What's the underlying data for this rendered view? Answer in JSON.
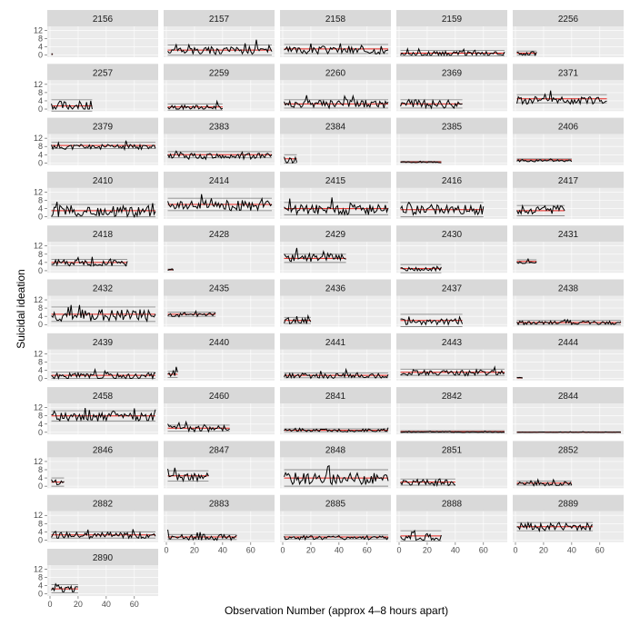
{
  "chart_data": {
    "type": "line",
    "facet": "small-multiples",
    "xlabel": "Observation Number (approx 4–8 hours apart)",
    "ylabel": "Suicidal ideation",
    "xlim": [
      0,
      75
    ],
    "ylim": [
      -1,
      14
    ],
    "x_ticks": [
      0,
      20,
      40,
      60
    ],
    "y_ticks": [
      0,
      4,
      8,
      12
    ],
    "grid": true,
    "colors": {
      "panel_bg": "#ebebeb",
      "strip_bg": "#d9d9d9",
      "grid": "#ffffff",
      "series": "#000000",
      "mean_line": "#e8251f",
      "band_line": "#8c8c8c"
    },
    "panels": [
      {
        "id": "2156",
        "n": 2,
        "mean": 0.5,
        "sd": 0.3,
        "base": 0.3,
        "amp": 0.4,
        "seed": 1
      },
      {
        "id": "2157",
        "n": 75,
        "mean": 2.5,
        "sd": 2.5,
        "base": 2,
        "amp": 4,
        "seed": 2
      },
      {
        "id": "2158",
        "n": 75,
        "mean": 3,
        "sd": 2.2,
        "base": 2,
        "amp": 3.5,
        "seed": 3
      },
      {
        "id": "2159",
        "n": 75,
        "mean": 1,
        "sd": 1.3,
        "base": 0.5,
        "amp": 2.5,
        "seed": 4
      },
      {
        "id": "2256",
        "n": 15,
        "mean": 1,
        "sd": 1,
        "base": 0.5,
        "amp": 2,
        "seed": 5
      },
      {
        "id": "2257",
        "n": 30,
        "mean": 1.5,
        "sd": 3,
        "base": 1,
        "amp": 5,
        "seed": 6
      },
      {
        "id": "2259",
        "n": 40,
        "mean": 1,
        "sd": 1.5,
        "base": 0.5,
        "amp": 2.5,
        "seed": 7
      },
      {
        "id": "2260",
        "n": 75,
        "mean": 2.5,
        "sd": 2,
        "base": 2,
        "amp": 4,
        "seed": 8
      },
      {
        "id": "2369",
        "n": 45,
        "mean": 2.5,
        "sd": 2,
        "base": 2,
        "amp": 4,
        "seed": 9
      },
      {
        "id": "2371",
        "n": 65,
        "mean": 5,
        "sd": 2,
        "base": 4,
        "amp": 4,
        "seed": 10
      },
      {
        "id": "2379",
        "n": 75,
        "mean": 8.5,
        "sd": 1.5,
        "base": 7.5,
        "amp": 2.5,
        "seed": 11
      },
      {
        "id": "2383",
        "n": 75,
        "mean": 4,
        "sd": 1.5,
        "base": 3,
        "amp": 3,
        "seed": 12
      },
      {
        "id": "2384",
        "n": 10,
        "mean": 2,
        "sd": 2,
        "base": 1,
        "amp": 3,
        "seed": 13
      },
      {
        "id": "2385",
        "n": 30,
        "mean": 0.5,
        "sd": 0.3,
        "base": 0.3,
        "amp": 0.5,
        "seed": 14
      },
      {
        "id": "2406",
        "n": 40,
        "mean": 1.5,
        "sd": 0.5,
        "base": 1,
        "amp": 1,
        "seed": 15
      },
      {
        "id": "2410",
        "n": 75,
        "mean": 3,
        "sd": 3,
        "base": 2,
        "amp": 6,
        "seed": 16
      },
      {
        "id": "2414",
        "n": 75,
        "mean": 6,
        "sd": 3,
        "base": 5,
        "amp": 5,
        "seed": 17
      },
      {
        "id": "2415",
        "n": 75,
        "mean": 4,
        "sd": 3,
        "base": 3,
        "amp": 5,
        "seed": 18
      },
      {
        "id": "2416",
        "n": 60,
        "mean": 3.5,
        "sd": 3.5,
        "base": 3,
        "amp": 5,
        "seed": 19
      },
      {
        "id": "2417",
        "n": 35,
        "mean": 3,
        "sd": 2.5,
        "base": 3,
        "amp": 4,
        "seed": 20
      },
      {
        "id": "2418",
        "n": 55,
        "mean": 4,
        "sd": 1.5,
        "base": 3.5,
        "amp": 3,
        "seed": 21
      },
      {
        "id": "2428",
        "n": 5,
        "mean": 0.5,
        "sd": 0.3,
        "base": 0.5,
        "amp": 1,
        "seed": 22
      },
      {
        "id": "2429",
        "n": 45,
        "mean": 6,
        "sd": 2,
        "base": 6,
        "amp": 4,
        "seed": 23
      },
      {
        "id": "2430",
        "n": 30,
        "mean": 1,
        "sd": 2,
        "base": 0.5,
        "amp": 2,
        "seed": 24
      },
      {
        "id": "2431",
        "n": 15,
        "mean": 4.5,
        "sd": 0.8,
        "base": 4,
        "amp": 1.5,
        "seed": 25
      },
      {
        "id": "2432",
        "n": 75,
        "mean": 5,
        "sd": 3.5,
        "base": 4,
        "amp": 6,
        "seed": 26
      },
      {
        "id": "2435",
        "n": 35,
        "mean": 5,
        "sd": 1,
        "base": 4.5,
        "amp": 2,
        "seed": 27
      },
      {
        "id": "2436",
        "n": 20,
        "mean": 2,
        "sd": 1.5,
        "base": 1.5,
        "amp": 3,
        "seed": 28
      },
      {
        "id": "2437",
        "n": 45,
        "mean": 2,
        "sd": 3,
        "base": 1,
        "amp": 3,
        "seed": 29
      },
      {
        "id": "2438",
        "n": 75,
        "mean": 1,
        "sd": 1,
        "base": 0.5,
        "amp": 2,
        "seed": 30
      },
      {
        "id": "2439",
        "n": 75,
        "mean": 1.5,
        "sd": 1.5,
        "base": 0.8,
        "amp": 3,
        "seed": 31
      },
      {
        "id": "2440",
        "n": 8,
        "mean": 2,
        "sd": 1.5,
        "base": 2,
        "amp": 3,
        "seed": 32
      },
      {
        "id": "2441",
        "n": 75,
        "mean": 1.5,
        "sd": 1.2,
        "base": 1,
        "amp": 2.5,
        "seed": 33
      },
      {
        "id": "2443",
        "n": 75,
        "mean": 3,
        "sd": 1.5,
        "base": 2.5,
        "amp": 3,
        "seed": 34
      },
      {
        "id": "2444",
        "n": 5,
        "mean": 0.3,
        "sd": 0.2,
        "base": 0.3,
        "amp": 0.4,
        "seed": 35
      },
      {
        "id": "2458",
        "n": 75,
        "mean": 8,
        "sd": 2.5,
        "base": 7,
        "amp": 4,
        "seed": 36
      },
      {
        "id": "2460",
        "n": 45,
        "mean": 2,
        "sd": 1.5,
        "base": 1.5,
        "amp": 3,
        "seed": 37
      },
      {
        "id": "2841",
        "n": 75,
        "mean": 1,
        "sd": 0.7,
        "base": 0.8,
        "amp": 1.5,
        "seed": 38
      },
      {
        "id": "2842",
        "n": 75,
        "mean": 0.3,
        "sd": 0.5,
        "base": 0.1,
        "amp": 0.3,
        "seed": 39
      },
      {
        "id": "2844",
        "n": 75,
        "mean": 0.1,
        "sd": 0.2,
        "base": 0,
        "amp": 0.2,
        "seed": 40
      },
      {
        "id": "2846",
        "n": 10,
        "mean": 2,
        "sd": 2,
        "base": 1.5,
        "amp": 3,
        "seed": 41
      },
      {
        "id": "2847",
        "n": 30,
        "mean": 5,
        "sd": 2.5,
        "base": 4,
        "amp": 4,
        "seed": 42
      },
      {
        "id": "2848",
        "n": 75,
        "mean": 4,
        "sd": 4,
        "base": 3,
        "amp": 6,
        "seed": 43
      },
      {
        "id": "2851",
        "n": 40,
        "mean": 2,
        "sd": 1.5,
        "base": 1.5,
        "amp": 3,
        "seed": 44
      },
      {
        "id": "2852",
        "n": 40,
        "mean": 1.5,
        "sd": 1,
        "base": 1,
        "amp": 2,
        "seed": 45
      },
      {
        "id": "2882",
        "n": 75,
        "mean": 2.5,
        "sd": 1.5,
        "base": 2,
        "amp": 3,
        "seed": 46
      },
      {
        "id": "2883",
        "n": 50,
        "mean": 1.5,
        "sd": 1.2,
        "base": 1,
        "amp": 3,
        "seed": 47
      },
      {
        "id": "2885",
        "n": 75,
        "mean": 1.5,
        "sd": 1,
        "base": 1,
        "amp": 2,
        "seed": 48
      },
      {
        "id": "2888",
        "n": 30,
        "mean": 2,
        "sd": 2.5,
        "base": 1,
        "amp": 3,
        "seed": 49
      },
      {
        "id": "2889",
        "n": 55,
        "mean": 6.5,
        "sd": 2,
        "base": 6,
        "amp": 4,
        "seed": 50
      },
      {
        "id": "2890",
        "n": 20,
        "mean": 2.5,
        "sd": 2,
        "base": 2,
        "amp": 3,
        "seed": 51
      }
    ]
  }
}
